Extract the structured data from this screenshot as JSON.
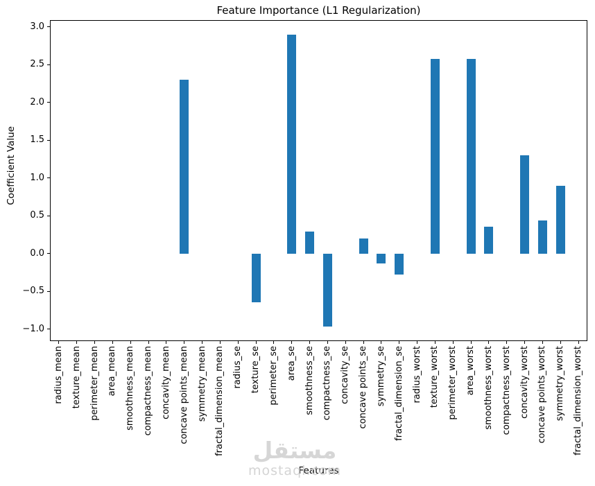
{
  "chart_data": {
    "type": "bar",
    "title": "Feature Importance (L1 Regularization)",
    "xlabel": "Features",
    "ylabel": "Coefficient Value",
    "categories": [
      "radius_mean",
      "texture_mean",
      "perimeter_mean",
      "area_mean",
      "smoothness_mean",
      "compactness_mean",
      "concavity_mean",
      "concave points_mean",
      "symmetry_mean",
      "fractal_dimension_mean",
      "radius_se",
      "texture_se",
      "perimeter_se",
      "area_se",
      "smoothness_se",
      "compactness_se",
      "concavity_se",
      "concave points_se",
      "symmetry_se",
      "fractal_dimension_se",
      "radius_worst",
      "texture_worst",
      "perimeter_worst",
      "area_worst",
      "smoothness_worst",
      "compactness_worst",
      "concavity_worst",
      "concave points_worst",
      "symmetry_worst",
      "fractal_dimension_worst"
    ],
    "values": [
      0,
      0,
      0,
      0,
      0,
      0,
      0,
      2.3,
      0,
      0,
      0,
      -0.65,
      0,
      2.9,
      0.29,
      -0.97,
      0,
      0.2,
      -0.13,
      -0.28,
      0,
      2.58,
      0,
      2.58,
      0.35,
      0,
      1.3,
      0.44,
      0.9,
      0
    ],
    "bar_color": "#1f77b4",
    "axis_color": "#000000",
    "text_color": "#000000",
    "background": "#ffffff",
    "ylim": [
      -1.16,
      3.09
    ],
    "ytick_values": [
      3.0,
      2.5,
      2.0,
      1.5,
      1.0,
      0.5,
      0.0,
      -0.5,
      -1.0
    ],
    "ytick_labels": [
      "3.0",
      "2.5",
      "2.0",
      "1.5",
      "1.0",
      "0.5",
      "0.0",
      "−0.5",
      "−1.0"
    ],
    "xtick_rotation": 90,
    "grid": false,
    "legend_position": "none"
  },
  "watermark": {
    "logo_text": "مستقل",
    "site_text": "mostaql.com"
  }
}
